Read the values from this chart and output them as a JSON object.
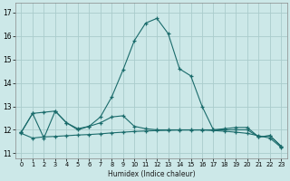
{
  "xlabel": "Humidex (Indice chaleur)",
  "bg_color": "#cce8e8",
  "grid_color": "#aacccc",
  "line_color": "#1a6b6b",
  "xlim": [
    -0.5,
    23.5
  ],
  "ylim": [
    10.8,
    17.4
  ],
  "yticks": [
    11,
    12,
    13,
    14,
    15,
    16,
    17
  ],
  "xticks": [
    0,
    1,
    2,
    3,
    4,
    5,
    6,
    7,
    8,
    9,
    10,
    11,
    12,
    13,
    14,
    15,
    16,
    17,
    18,
    19,
    20,
    21,
    22,
    23
  ],
  "line1_x": [
    0,
    1,
    2,
    3,
    4,
    5,
    6,
    7,
    8,
    9,
    10,
    11,
    12,
    13,
    14,
    15,
    16,
    17,
    18,
    19,
    20,
    21,
    22,
    23
  ],
  "line1_y": [
    11.9,
    12.7,
    12.75,
    12.8,
    12.3,
    12.05,
    12.15,
    12.55,
    13.4,
    14.55,
    15.8,
    16.55,
    16.75,
    16.1,
    14.6,
    14.3,
    13.0,
    12.0,
    12.05,
    12.1,
    12.1,
    11.7,
    11.75,
    11.3
  ],
  "line2_x": [
    0,
    1,
    2,
    3,
    4,
    5,
    6,
    7,
    8,
    9,
    10,
    11,
    12,
    13,
    14,
    15,
    16,
    17,
    18,
    19,
    20,
    21,
    22,
    23
  ],
  "line2_y": [
    11.9,
    12.7,
    11.65,
    12.8,
    12.3,
    12.0,
    12.15,
    12.3,
    12.55,
    12.6,
    12.15,
    12.05,
    12.0,
    12.0,
    12.0,
    12.0,
    12.0,
    12.0,
    12.0,
    12.0,
    12.0,
    11.7,
    11.75,
    11.3
  ],
  "line3_x": [
    0,
    1,
    2,
    3,
    4,
    5,
    6,
    7,
    8,
    9,
    10,
    11,
    12,
    13,
    14,
    15,
    16,
    17,
    18,
    19,
    20,
    21,
    22,
    23
  ],
  "line3_y": [
    11.85,
    11.65,
    11.7,
    11.72,
    11.75,
    11.78,
    11.8,
    11.83,
    11.87,
    11.9,
    11.93,
    11.95,
    11.97,
    11.98,
    11.99,
    11.99,
    11.99,
    11.97,
    11.94,
    11.9,
    11.85,
    11.75,
    11.65,
    11.25
  ]
}
